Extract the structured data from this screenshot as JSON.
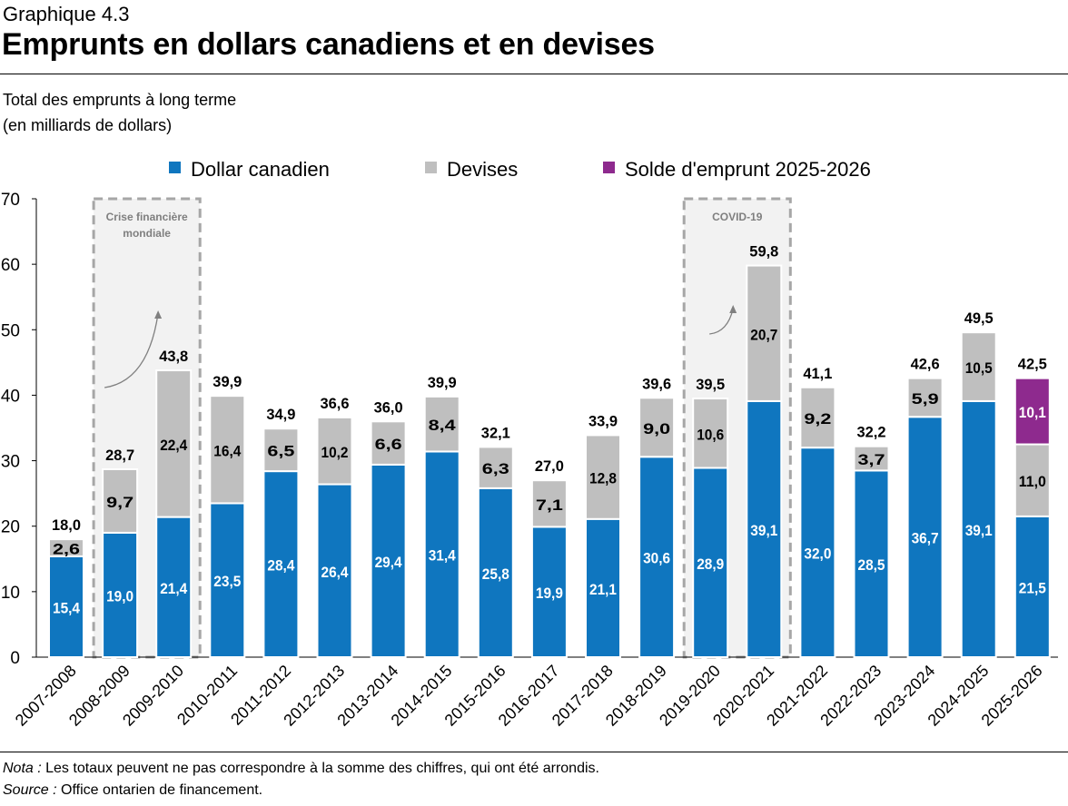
{
  "header": {
    "kicker": "Graphique 4.3",
    "title": "Emprunts en dollars canadiens et en devises"
  },
  "subtitle": {
    "line1": "Total des emprunts à long terme",
    "line2": "(en milliards de dollars)"
  },
  "footer": {
    "note_label": "Nota :",
    "note_text": " Les totaux peuvent ne pas correspondre à la somme des chiffres, qui ont été arrondis.",
    "source_label": "Source :",
    "source_text": " Office ontarien de financement."
  },
  "chart_data": {
    "type": "bar",
    "stacked": true,
    "categories": [
      "2007-2008",
      "2008-2009",
      "2009-2010",
      "2010-2011",
      "2011-2012",
      "2012-2013",
      "2013-2014",
      "2014-2015",
      "2015-2016",
      "2016-2017",
      "2017-2018",
      "2018-2019",
      "2019-2020",
      "2020-2021",
      "2021-2022",
      "2022-2023",
      "2023-2024",
      "2024-2025",
      "2025-2026"
    ],
    "series": [
      {
        "name": "Dollar canadien",
        "color": "#0F76BF",
        "values": [
          15.4,
          19.0,
          21.4,
          23.5,
          28.4,
          26.4,
          29.4,
          31.4,
          25.8,
          19.9,
          21.1,
          30.6,
          28.9,
          39.1,
          32.0,
          28.5,
          36.7,
          39.1,
          21.5
        ]
      },
      {
        "name": "Devises",
        "color": "#BFBFBF",
        "values": [
          2.6,
          9.7,
          22.4,
          16.4,
          6.5,
          10.2,
          6.6,
          8.4,
          6.3,
          7.1,
          12.8,
          9.0,
          10.6,
          20.7,
          9.2,
          3.7,
          5.9,
          10.5,
          11.0
        ]
      },
      {
        "name": "Solde d'emprunt 2025-2026",
        "color": "#8E2A8E",
        "values": [
          null,
          null,
          null,
          null,
          null,
          null,
          null,
          null,
          null,
          null,
          null,
          null,
          null,
          null,
          null,
          null,
          null,
          null,
          10.1
        ]
      }
    ],
    "totals": [
      "18,0",
      "28,7",
      "43,8",
      "39,9",
      "34,9",
      "36,6",
      "36,0",
      "39,9",
      "32,1",
      "27,0",
      "33,9",
      "39,6",
      "39,5",
      "59,8",
      "41,1",
      "32,2",
      "42,6",
      "49,5",
      "42,5"
    ],
    "ylim": [
      0,
      70
    ],
    "yticks": [
      0,
      10,
      20,
      30,
      40,
      50,
      60,
      70
    ],
    "grid": false,
    "legend": "top",
    "annotations": [
      {
        "text": [
          "Crise financière",
          "mondiale"
        ],
        "categories": [
          "2008-2009",
          "2009-2010"
        ]
      },
      {
        "text": [
          "COVID-19"
        ],
        "categories": [
          "2019-2020",
          "2020-2021"
        ]
      }
    ]
  }
}
